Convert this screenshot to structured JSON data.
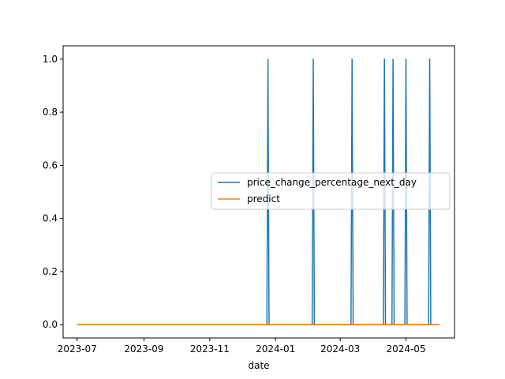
{
  "chart_data": {
    "type": "line",
    "title": "",
    "xlabel": "date",
    "ylabel": "",
    "x_axis": "date",
    "xlim": [
      "2023-06-18",
      "2024-06-15"
    ],
    "ylim": [
      -0.05,
      1.05
    ],
    "x_ticks": [
      "2023-07",
      "2023-09",
      "2023-11",
      "2024-01",
      "2024-03",
      "2024-05"
    ],
    "y_ticks": [
      "0.0",
      "0.2",
      "0.4",
      "0.6",
      "0.8",
      "1.0"
    ],
    "grid": false,
    "legend_position": "center-right",
    "x_range": [
      "2023-07-01",
      "2024-06-01"
    ],
    "series": [
      {
        "name": "price_change_percentage_next_day",
        "color": "#1f77b4",
        "baseline": 0,
        "spikes": [
          {
            "date": "2023-12-25",
            "value": 1
          },
          {
            "date": "2024-02-05",
            "value": 1
          },
          {
            "date": "2024-03-12",
            "value": 1
          },
          {
            "date": "2024-04-11",
            "value": 1
          },
          {
            "date": "2024-04-19",
            "value": 1
          },
          {
            "date": "2024-05-01",
            "value": 1
          },
          {
            "date": "2024-05-23",
            "value": 1
          }
        ]
      },
      {
        "name": "predict",
        "color": "#ff7f0e",
        "baseline": 0,
        "spikes": []
      }
    ]
  }
}
